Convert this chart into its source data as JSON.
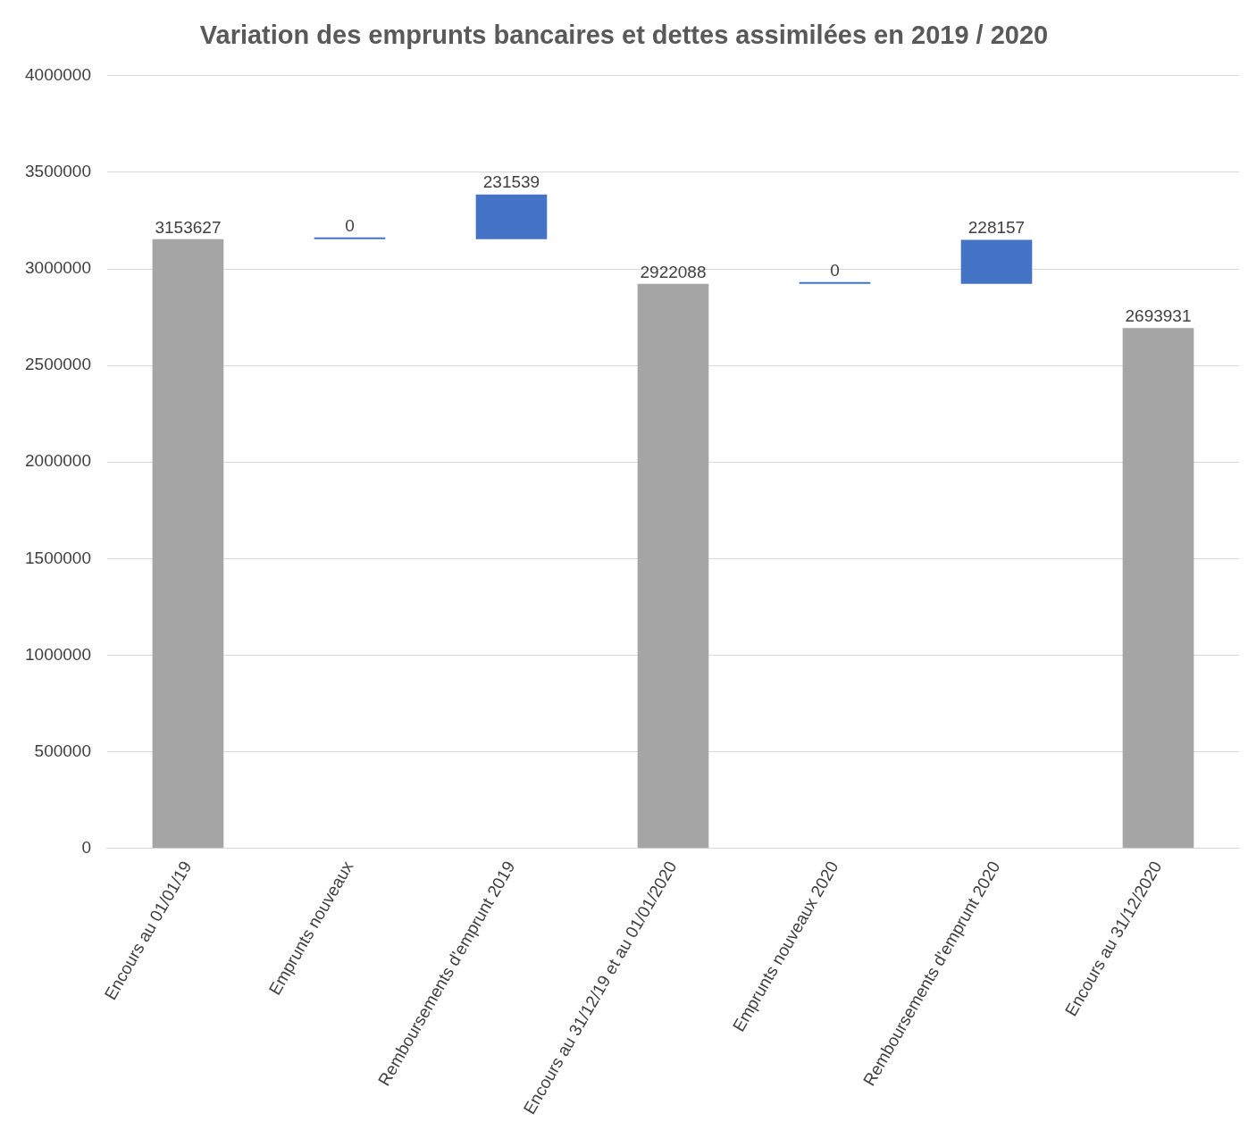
{
  "chart_data": {
    "type": "bar",
    "title": "Variation des emprunts bancaires et dettes assimilées en 2019 / 2020",
    "categories": [
      "Encours au 01/01/19",
      "Emprunts nouveaux",
      "Remboursements d'emprunt 2019",
      "Encours au 31/12/19 et au 01/01/2020",
      "Emprunts nouveaux 2020",
      "Remboursements d'emprunt 2020",
      "Encours au 31/12/2020"
    ],
    "values": [
      3153627,
      0,
      231539,
      2922088,
      0,
      228157,
      2693931
    ],
    "base": [
      0,
      3153627,
      3153627,
      0,
      2922088,
      2922088,
      0
    ],
    "colors": [
      "#a5a5a5",
      "#4472c4",
      "#4472c4",
      "#a5a5a5",
      "#4472c4",
      "#4472c4",
      "#a5a5a5"
    ],
    "ylim": [
      0,
      4000000
    ],
    "yticks": [
      0,
      500000,
      1000000,
      1500000,
      2000000,
      2500000,
      3000000,
      3500000,
      4000000
    ],
    "grid": "y",
    "data_labels": true,
    "legend": false
  }
}
